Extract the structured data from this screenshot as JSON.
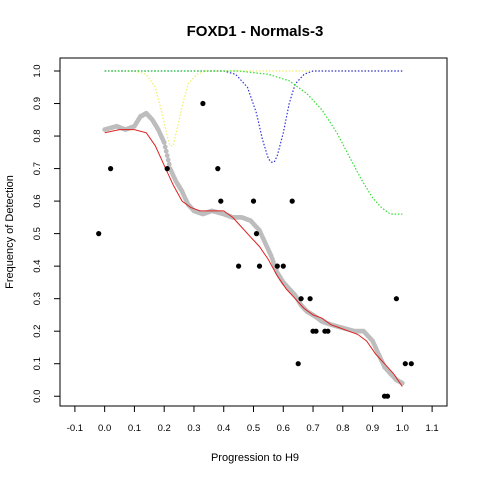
{
  "chart_data": {
    "type": "scatter",
    "title": "FOXD1 - Normals-3",
    "xlabel": "Progression to H9",
    "ylabel": "Frequency of Detection",
    "xlim": [
      -0.15,
      1.15
    ],
    "ylim": [
      -0.03,
      1.04
    ],
    "x_ticks": [
      -0.1,
      0.0,
      0.1,
      0.2,
      0.3,
      0.4,
      0.5,
      0.6,
      0.7,
      0.8,
      0.9,
      1.0,
      1.1
    ],
    "x_tick_labels": [
      "-0.1",
      "0.0",
      "0.1",
      "0.2",
      "0.3",
      "0.4",
      "0.5",
      "0.6",
      "0.7",
      "0.8",
      "0.9",
      "1.0",
      "1.1"
    ],
    "y_ticks": [
      0.0,
      0.1,
      0.2,
      0.3,
      0.4,
      0.5,
      0.6,
      0.7,
      0.8,
      0.9,
      1.0
    ],
    "y_tick_labels": [
      "0.0",
      "0.1",
      "0.2",
      "0.3",
      "0.4",
      "0.5",
      "0.6",
      "0.7",
      "0.8",
      "0.9",
      "1.0"
    ],
    "grid": false,
    "colors": {
      "points": "#000000",
      "smoothed": "#bdbdbd",
      "fit": "#dd2222",
      "yellow": "#eeee66",
      "blue": "#3333dd",
      "green": "#33dd33"
    },
    "series": [
      {
        "kind": "points",
        "values": [
          [
            -0.02,
            0.5
          ],
          [
            0.02,
            0.7
          ],
          [
            0.21,
            0.7
          ],
          [
            0.33,
            0.9
          ],
          [
            0.38,
            0.7
          ],
          [
            0.39,
            0.6
          ],
          [
            0.45,
            0.4
          ],
          [
            0.5,
            0.6
          ],
          [
            0.51,
            0.5
          ],
          [
            0.52,
            0.4
          ],
          [
            0.58,
            0.4
          ],
          [
            0.6,
            0.4
          ],
          [
            0.63,
            0.6
          ],
          [
            0.65,
            0.1
          ],
          [
            0.66,
            0.3
          ],
          [
            0.69,
            0.3
          ],
          [
            0.7,
            0.2
          ],
          [
            0.71,
            0.2
          ],
          [
            0.74,
            0.2
          ],
          [
            0.75,
            0.2
          ],
          [
            0.94,
            0.0
          ],
          [
            0.95,
            0.0
          ],
          [
            0.98,
            0.3
          ],
          [
            1.01,
            0.1
          ],
          [
            1.03,
            0.1
          ]
        ]
      },
      {
        "kind": "smoothed",
        "values": [
          [
            0.0,
            0.82
          ],
          [
            0.04,
            0.83
          ],
          [
            0.07,
            0.82
          ],
          [
            0.1,
            0.83
          ],
          [
            0.12,
            0.86
          ],
          [
            0.14,
            0.87
          ],
          [
            0.16,
            0.85
          ],
          [
            0.18,
            0.82
          ],
          [
            0.2,
            0.78
          ],
          [
            0.22,
            0.7
          ],
          [
            0.24,
            0.66
          ],
          [
            0.26,
            0.63
          ],
          [
            0.28,
            0.59
          ],
          [
            0.3,
            0.57
          ],
          [
            0.33,
            0.56
          ],
          [
            0.36,
            0.57
          ],
          [
            0.4,
            0.56
          ],
          [
            0.43,
            0.55
          ],
          [
            0.46,
            0.55
          ],
          [
            0.49,
            0.54
          ],
          [
            0.52,
            0.51
          ],
          [
            0.54,
            0.47
          ],
          [
            0.56,
            0.43
          ],
          [
            0.58,
            0.38
          ],
          [
            0.6,
            0.35
          ],
          [
            0.62,
            0.33
          ],
          [
            0.64,
            0.31
          ],
          [
            0.66,
            0.28
          ],
          [
            0.68,
            0.26
          ],
          [
            0.7,
            0.25
          ],
          [
            0.73,
            0.23
          ],
          [
            0.76,
            0.22
          ],
          [
            0.8,
            0.21
          ],
          [
            0.84,
            0.2
          ],
          [
            0.87,
            0.2
          ],
          [
            0.9,
            0.17
          ],
          [
            0.92,
            0.13
          ],
          [
            0.94,
            0.09
          ],
          [
            0.96,
            0.07
          ],
          [
            0.98,
            0.05
          ],
          [
            1.0,
            0.04
          ]
        ]
      },
      {
        "kind": "fit",
        "values": [
          [
            0.0,
            0.81
          ],
          [
            0.05,
            0.82
          ],
          [
            0.1,
            0.82
          ],
          [
            0.14,
            0.81
          ],
          [
            0.17,
            0.77
          ],
          [
            0.2,
            0.71
          ],
          [
            0.23,
            0.65
          ],
          [
            0.26,
            0.6
          ],
          [
            0.29,
            0.58
          ],
          [
            0.32,
            0.57
          ],
          [
            0.36,
            0.57
          ],
          [
            0.4,
            0.57
          ],
          [
            0.43,
            0.55
          ],
          [
            0.46,
            0.52
          ],
          [
            0.49,
            0.49
          ],
          [
            0.52,
            0.46
          ],
          [
            0.55,
            0.42
          ],
          [
            0.58,
            0.37
          ],
          [
            0.61,
            0.33
          ],
          [
            0.64,
            0.3
          ],
          [
            0.67,
            0.27
          ],
          [
            0.7,
            0.25
          ],
          [
            0.73,
            0.24
          ],
          [
            0.76,
            0.22
          ],
          [
            0.79,
            0.21
          ],
          [
            0.82,
            0.2
          ],
          [
            0.85,
            0.19
          ],
          [
            0.88,
            0.17
          ],
          [
            0.91,
            0.13
          ],
          [
            0.94,
            0.1
          ],
          [
            0.97,
            0.07
          ],
          [
            1.0,
            0.03
          ]
        ]
      },
      {
        "kind": "yellow",
        "values": [
          [
            0.0,
            1.0
          ],
          [
            0.1,
            1.0
          ],
          [
            0.14,
            0.99
          ],
          [
            0.17,
            0.95
          ],
          [
            0.19,
            0.88
          ],
          [
            0.21,
            0.8
          ],
          [
            0.22,
            0.77
          ],
          [
            0.23,
            0.77
          ],
          [
            0.24,
            0.81
          ],
          [
            0.26,
            0.89
          ],
          [
            0.28,
            0.96
          ],
          [
            0.31,
            0.99
          ],
          [
            0.34,
            1.0
          ],
          [
            1.0,
            1.0
          ]
        ]
      },
      {
        "kind": "blue",
        "values": [
          [
            0.0,
            1.0
          ],
          [
            0.4,
            1.0
          ],
          [
            0.44,
            0.99
          ],
          [
            0.48,
            0.95
          ],
          [
            0.51,
            0.87
          ],
          [
            0.53,
            0.79
          ],
          [
            0.55,
            0.73
          ],
          [
            0.56,
            0.72
          ],
          [
            0.57,
            0.72
          ],
          [
            0.58,
            0.74
          ],
          [
            0.6,
            0.81
          ],
          [
            0.62,
            0.9
          ],
          [
            0.64,
            0.96
          ],
          [
            0.67,
            0.99
          ],
          [
            0.7,
            1.0
          ],
          [
            1.0,
            1.0
          ]
        ]
      },
      {
        "kind": "green",
        "values": [
          [
            0.0,
            1.0
          ],
          [
            0.45,
            1.0
          ],
          [
            0.55,
            0.99
          ],
          [
            0.62,
            0.97
          ],
          [
            0.68,
            0.93
          ],
          [
            0.73,
            0.88
          ],
          [
            0.78,
            0.81
          ],
          [
            0.82,
            0.74
          ],
          [
            0.86,
            0.67
          ],
          [
            0.9,
            0.61
          ],
          [
            0.93,
            0.58
          ],
          [
            0.96,
            0.56
          ],
          [
            1.0,
            0.56
          ]
        ]
      }
    ]
  }
}
